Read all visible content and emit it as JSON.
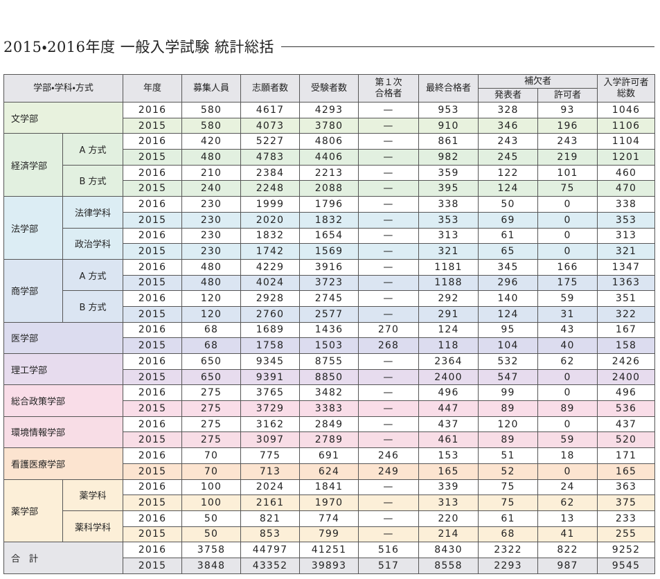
{
  "title": "2015・2016年度 一般入学試験 統計総括",
  "header": {
    "faculty": "学部・学科・方式",
    "year": "年度",
    "capacity": "募集人員",
    "applicants": "志願者数",
    "examinees": "受験者数",
    "first_pass": [
      "第１次",
      "合格者"
    ],
    "final_pass": "最終合格者",
    "waitlist": "補欠者",
    "waitlist_announced": "発表者",
    "waitlist_admitted": "許可者",
    "admitted_total": [
      "入学許可者",
      "総数"
    ]
  },
  "groups": [
    {
      "name": "文学部",
      "color": "#e8f2de",
      "rows": [
        [
          2016,
          580,
          4617,
          4293,
          "—",
          953,
          328,
          93,
          1046
        ],
        [
          2015,
          580,
          4073,
          3780,
          "—",
          910,
          346,
          196,
          1106
        ]
      ]
    },
    {
      "name": "経済学部",
      "color": "#e2f0e0",
      "subgroups": [
        {
          "name": "A 方式",
          "rows": [
            [
              2016,
              420,
              5227,
              4806,
              "—",
              861,
              243,
              243,
              1104
            ],
            [
              2015,
              480,
              4783,
              4406,
              "—",
              982,
              245,
              219,
              1201
            ]
          ]
        },
        {
          "name": "B 方式",
          "rows": [
            [
              2016,
              210,
              2384,
              2213,
              "—",
              359,
              122,
              101,
              460
            ],
            [
              2015,
              240,
              2248,
              2088,
              "—",
              395,
              124,
              75,
              470
            ]
          ]
        }
      ]
    },
    {
      "name": "法学部",
      "color": "#dcedf4",
      "subgroups": [
        {
          "name": "法律学科",
          "rows": [
            [
              2016,
              230,
              1999,
              1796,
              "—",
              338,
              50,
              0,
              338
            ],
            [
              2015,
              230,
              2020,
              1832,
              "—",
              353,
              69,
              0,
              353
            ]
          ]
        },
        {
          "name": "政治学科",
          "rows": [
            [
              2016,
              230,
              1832,
              1654,
              "—",
              313,
              61,
              0,
              313
            ],
            [
              2015,
              230,
              1742,
              1569,
              "—",
              321,
              65,
              0,
              321
            ]
          ]
        }
      ]
    },
    {
      "name": "商学部",
      "color": "#dbe5f2",
      "subgroups": [
        {
          "name": "A 方式",
          "rows": [
            [
              2016,
              480,
              4229,
              3916,
              "—",
              1181,
              345,
              166,
              1347
            ],
            [
              2015,
              480,
              4024,
              3723,
              "—",
              1188,
              296,
              175,
              1363
            ]
          ]
        },
        {
          "name": "B 方式",
          "rows": [
            [
              2016,
              120,
              2928,
              2745,
              "—",
              292,
              140,
              59,
              351
            ],
            [
              2015,
              120,
              2760,
              2577,
              "—",
              291,
              124,
              31,
              322
            ]
          ]
        }
      ]
    },
    {
      "name": "医学部",
      "color": "#dcdcef",
      "rows": [
        [
          2016,
          68,
          1689,
          1436,
          270,
          124,
          95,
          43,
          167
        ],
        [
          2015,
          68,
          1758,
          1503,
          268,
          118,
          104,
          40,
          158
        ]
      ]
    },
    {
      "name": "理工学部",
      "color": "#e7dcee",
      "rows": [
        [
          2016,
          650,
          9345,
          8755,
          "—",
          2364,
          532,
          62,
          2426
        ],
        [
          2015,
          650,
          9391,
          8850,
          "—",
          2400,
          547,
          0,
          2400
        ]
      ]
    },
    {
      "name": "総合政策学部",
      "color": "#f9dde8",
      "rows": [
        [
          2016,
          275,
          3765,
          3482,
          "—",
          496,
          99,
          0,
          496
        ],
        [
          2015,
          275,
          3729,
          3383,
          "—",
          447,
          89,
          89,
          536
        ]
      ]
    },
    {
      "name": "環境情報学部",
      "color": "#f8dde6",
      "rows": [
        [
          2016,
          275,
          3162,
          2849,
          "—",
          437,
          120,
          0,
          437
        ],
        [
          2015,
          275,
          3097,
          2789,
          "—",
          461,
          89,
          59,
          520
        ]
      ]
    },
    {
      "name": "看護医療学部",
      "color": "#fce4d0",
      "rows": [
        [
          2016,
          70,
          775,
          691,
          246,
          153,
          51,
          18,
          171
        ],
        [
          2015,
          70,
          713,
          624,
          249,
          165,
          52,
          0,
          165
        ]
      ]
    },
    {
      "name": "薬学部",
      "color": "#fcefd8",
      "subgroups": [
        {
          "name": "薬学科",
          "rows": [
            [
              2016,
              100,
              2024,
              1841,
              "—",
              339,
              75,
              24,
              363
            ],
            [
              2015,
              100,
              2161,
              1970,
              "—",
              313,
              75,
              62,
              375
            ]
          ]
        },
        {
          "name": "薬科学科",
          "rows": [
            [
              2016,
              50,
              821,
              774,
              "—",
              220,
              61,
              13,
              233
            ],
            [
              2015,
              50,
              853,
              799,
              "—",
              214,
              68,
              41,
              255
            ]
          ]
        }
      ]
    },
    {
      "name": "合　計",
      "color": "#e6e6ea",
      "rows": [
        [
          2016,
          3758,
          44797,
          41251,
          516,
          8430,
          2322,
          822,
          9252
        ],
        [
          2015,
          3848,
          43352,
          39893,
          517,
          8558,
          2293,
          987,
          9545
        ]
      ]
    }
  ]
}
